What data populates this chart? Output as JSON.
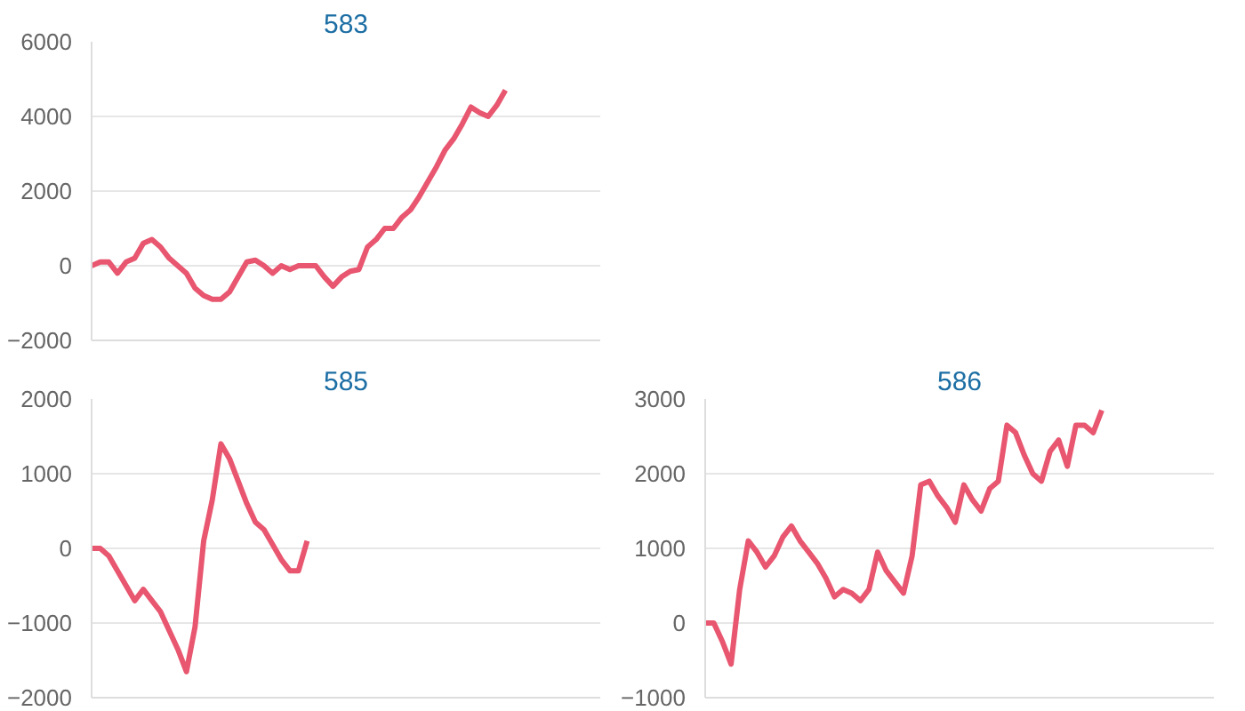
{
  "chart_data": [
    {
      "type": "line",
      "title": "583",
      "categories": [
        null,
        null,
        null,
        null,
        null,
        null,
        null,
        null,
        null,
        null,
        null,
        null,
        null,
        null,
        null,
        null,
        null,
        null,
        null,
        null,
        null,
        null,
        null,
        null,
        null,
        null,
        null,
        null,
        null,
        null,
        null,
        null,
        null,
        null,
        null,
        null,
        null,
        null,
        null,
        null,
        null,
        null,
        null,
        null,
        null,
        null,
        null,
        null,
        null,
        null,
        null,
        null,
        null,
        null,
        null,
        null,
        null,
        null,
        null,
        null
      ],
      "series": [
        {
          "color": "#e8566f",
          "values": [
            0,
            100,
            100,
            -200,
            100,
            200,
            600,
            700,
            500,
            200,
            0,
            -200,
            -600,
            -800,
            -900,
            -900,
            -700,
            -300,
            100,
            150,
            0,
            -200,
            0,
            -100,
            0,
            0,
            0,
            -300,
            -550,
            -300,
            -150,
            -100,
            500,
            700,
            1000,
            1000,
            1300,
            1500,
            1850,
            2250,
            2650,
            3100,
            3400,
            3800,
            4250,
            4100,
            4000,
            4300,
            4700,
            null,
            null,
            null,
            null,
            null,
            null,
            null,
            null,
            null,
            null,
            null
          ]
        }
      ],
      "ylim": [
        -2000,
        6000
      ],
      "yticks": [
        -2000,
        0,
        2000,
        4000,
        6000
      ],
      "grid": "y",
      "tick_labels": "y"
    },
    {
      "type": "line",
      "title": "585",
      "categories": [
        null,
        null,
        null,
        null,
        null,
        null,
        null,
        null,
        null,
        null,
        null,
        null,
        null,
        null,
        null,
        null,
        null,
        null,
        null,
        null,
        null,
        null,
        null,
        null,
        null,
        null,
        null,
        null,
        null,
        null,
        null,
        null,
        null,
        null,
        null,
        null,
        null,
        null,
        null,
        null,
        null,
        null,
        null,
        null,
        null,
        null,
        null,
        null,
        null,
        null,
        null,
        null,
        null,
        null,
        null,
        null,
        null,
        null,
        null,
        null
      ],
      "series": [
        {
          "color": "#e8566f",
          "values": [
            0,
            0,
            -100,
            -300,
            -500,
            -700,
            -550,
            -700,
            -850,
            -1100,
            -1350,
            -1650,
            -1050,
            100,
            650,
            1400,
            1200,
            900,
            600,
            350,
            250,
            50,
            -150,
            -300,
            -300,
            100,
            null,
            null,
            null,
            null,
            null,
            null,
            null,
            null,
            null,
            null,
            null,
            null,
            null,
            null,
            null,
            null,
            null,
            null,
            null,
            null,
            null,
            null,
            null,
            null,
            null,
            null,
            null,
            null,
            null,
            null,
            null,
            null,
            null,
            null
          ]
        }
      ],
      "ylim": [
        -2000,
        2000
      ],
      "yticks": [
        -2000,
        -1000,
        0,
        1000,
        2000
      ],
      "grid": "y",
      "tick_labels": "y"
    },
    {
      "type": "line",
      "title": "586",
      "categories": [
        null,
        null,
        null,
        null,
        null,
        null,
        null,
        null,
        null,
        null,
        null,
        null,
        null,
        null,
        null,
        null,
        null,
        null,
        null,
        null,
        null,
        null,
        null,
        null,
        null,
        null,
        null,
        null,
        null,
        null,
        null,
        null,
        null,
        null,
        null,
        null,
        null,
        null,
        null,
        null,
        null,
        null,
        null,
        null,
        null,
        null,
        null,
        null,
        null,
        null,
        null,
        null,
        null,
        null,
        null,
        null,
        null,
        null,
        null,
        null
      ],
      "series": [
        {
          "color": "#e8566f",
          "values": [
            0,
            0,
            -250,
            -550,
            450,
            1100,
            950,
            750,
            900,
            1150,
            1300,
            1100,
            950,
            800,
            600,
            350,
            450,
            400,
            300,
            450,
            950,
            700,
            550,
            400,
            900,
            1850,
            1900,
            1700,
            1550,
            1350,
            1850,
            1650,
            1500,
            1800,
            1900,
            2650,
            2550,
            2250,
            2000,
            1900,
            2300,
            2450,
            2100,
            2650,
            2650,
            2550,
            2850,
            null,
            null,
            null,
            null,
            null,
            null,
            null,
            null,
            null,
            null,
            null,
            null,
            null
          ]
        }
      ],
      "ylim": [
        -1000,
        3000
      ],
      "yticks": [
        -1000,
        0,
        1000,
        2000,
        3000
      ],
      "grid": "y",
      "tick_labels": "y"
    }
  ]
}
